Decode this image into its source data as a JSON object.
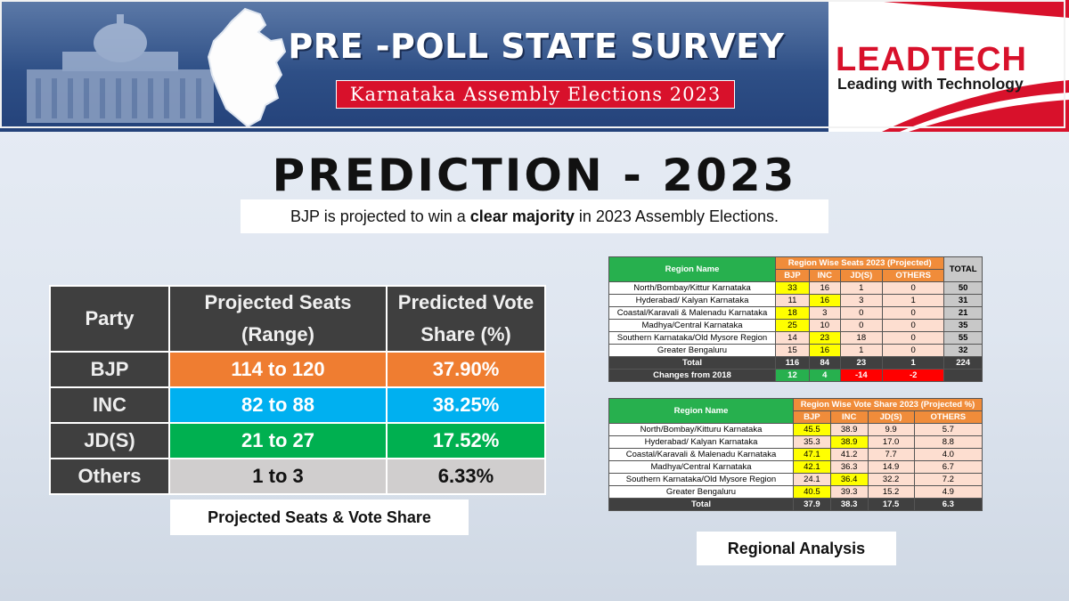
{
  "header": {
    "title": "PRE -POLL STATE SURVEY",
    "subtitle": "Karnataka Assembly Elections 2023",
    "logo_text": "LEADTECH",
    "logo_tagline": "Leading with Technology",
    "brand_red": "#d8112b",
    "header_blue": "#2e4f86"
  },
  "main": {
    "title": "PREDICTION - 2023",
    "summary_pre": "BJP is projected to win a ",
    "summary_bold": "clear majority",
    "summary_post": " in 2023 Assembly Elections."
  },
  "party_table": {
    "headers": [
      "Party",
      "Projected Seats (Range)",
      "Predicted Vote Share (%)"
    ],
    "rows": [
      {
        "party": "BJP",
        "seats": "114 to 120",
        "share": "37.90%",
        "color": "#ef7d31"
      },
      {
        "party": "INC",
        "seats": "82 to 88",
        "share": "38.25%",
        "color": "#00b0f0"
      },
      {
        "party": "JD(S)",
        "seats": "21 to 27",
        "share": "17.52%",
        "color": "#00b050"
      },
      {
        "party": "Others",
        "seats": "1 to 3",
        "share": "6.33%",
        "color": "#d0cece"
      }
    ],
    "caption": "Projected Seats & Vote Share"
  },
  "seats_table": {
    "region_header": "Region Name",
    "group_header": "Region Wise Seats 2023 (Projected)",
    "total_header": "TOTAL",
    "cols": [
      "BJP",
      "INC",
      "JD(S)",
      "OTHERS"
    ],
    "rows": [
      {
        "region": "North/Bombay/Kittur Karnataka",
        "vals": [
          "33",
          "16",
          "1",
          "0"
        ],
        "total": "50",
        "hl": 0
      },
      {
        "region": "Hyderabad/ Kalyan Karnataka",
        "vals": [
          "11",
          "16",
          "3",
          "1"
        ],
        "total": "31",
        "hl": 1
      },
      {
        "region": "Coastal/Karavali & Malenadu Karnataka",
        "vals": [
          "18",
          "3",
          "0",
          "0"
        ],
        "total": "21",
        "hl": 0
      },
      {
        "region": "Madhya/Central Karnataka",
        "vals": [
          "25",
          "10",
          "0",
          "0"
        ],
        "total": "35",
        "hl": 0
      },
      {
        "region": "Southern Karnataka/Old Mysore Region",
        "vals": [
          "14",
          "23",
          "18",
          "0"
        ],
        "total": "55",
        "hl": 1
      },
      {
        "region": "Greater Bengaluru",
        "vals": [
          "15",
          "16",
          "1",
          "0"
        ],
        "total": "32",
        "hl": 1
      }
    ],
    "total_row": {
      "label": "Total",
      "vals": [
        "116",
        "84",
        "23",
        "1"
      ],
      "total": "224"
    },
    "change_row": {
      "label": "Changes from 2018",
      "vals": [
        "12",
        "4",
        "-14",
        "-2"
      ]
    }
  },
  "vote_table": {
    "region_header": "Region Name",
    "group_header": "Region Wise Vote Share 2023 (Projected %)",
    "cols": [
      "BJP",
      "INC",
      "JD(S)",
      "OTHERS"
    ],
    "rows": [
      {
        "region": "North/Bombay/Kitturu Karnataka",
        "vals": [
          "45.5",
          "38.9",
          "9.9",
          "5.7"
        ],
        "hl": 0
      },
      {
        "region": "Hyderabad/ Kalyan Karnataka",
        "vals": [
          "35.3",
          "38.9",
          "17.0",
          "8.8"
        ],
        "hl": 1
      },
      {
        "region": "Coastal/Karavali & Malenadu Karnataka",
        "vals": [
          "47.1",
          "41.2",
          "7.7",
          "4.0"
        ],
        "hl": 0
      },
      {
        "region": "Madhya/Central Karnataka",
        "vals": [
          "42.1",
          "36.3",
          "14.9",
          "6.7"
        ],
        "hl": 0
      },
      {
        "region": "Southern Karnataka/Old Mysore Region",
        "vals": [
          "24.1",
          "36.4",
          "32.2",
          "7.2"
        ],
        "hl": 1
      },
      {
        "region": "Greater Bengaluru",
        "vals": [
          "40.5",
          "39.3",
          "15.2",
          "4.9"
        ],
        "hl": 0
      }
    ],
    "total_row": {
      "label": "Total",
      "vals": [
        "37.9",
        "38.3",
        "17.5",
        "6.3"
      ]
    }
  },
  "regional_caption": "Regional Analysis"
}
